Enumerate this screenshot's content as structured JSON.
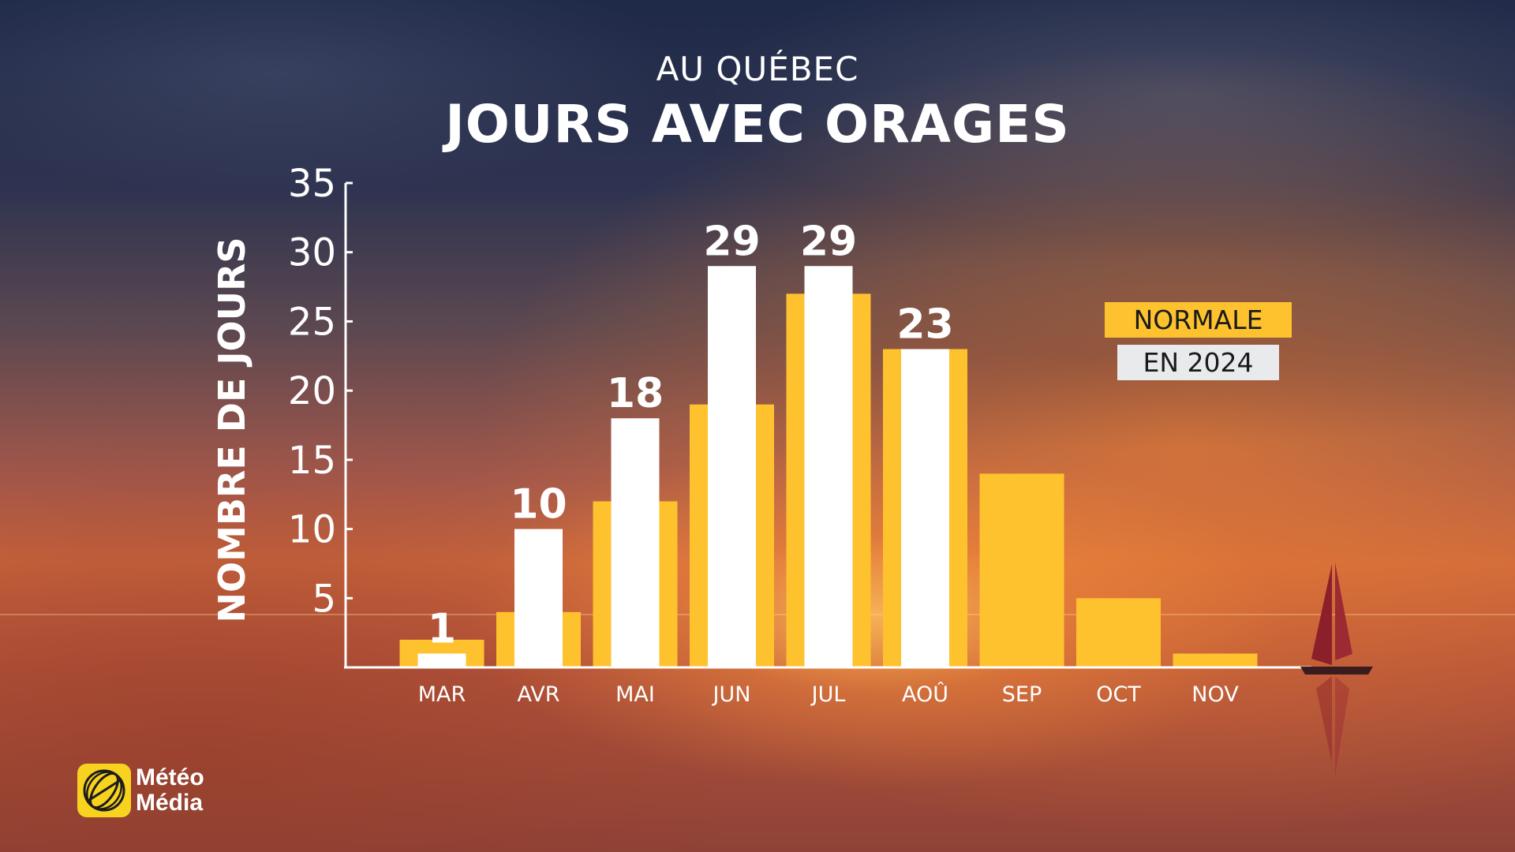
{
  "header": {
    "subtitle": "AU QUÉBEC",
    "title": "JOURS AVEC ORAGES"
  },
  "legend": {
    "normale": "NORMALE",
    "year": "EN 2024"
  },
  "logo": {
    "line1": "Météo",
    "line2": "Média"
  },
  "colors": {
    "normale": "#fec22f",
    "year": "#ffffff"
  },
  "chart_data": {
    "type": "bar",
    "title": "JOURS AVEC ORAGES",
    "subtitle": "AU QUÉBEC",
    "xlabel": "",
    "ylabel": "NOMBRE DE JOURS",
    "ylim": [
      0,
      35
    ],
    "yticks": [
      5,
      10,
      15,
      20,
      25,
      30,
      35
    ],
    "grid": false,
    "legend_position": "right",
    "categories": [
      "MAR",
      "AVR",
      "MAI",
      "JUN",
      "JUL",
      "AOÛ",
      "SEP",
      "OCT",
      "NOV"
    ],
    "series": [
      {
        "name": "NORMALE",
        "values": [
          2,
          4,
          12,
          19,
          27,
          23,
          14,
          5,
          1
        ]
      },
      {
        "name": "EN 2024",
        "values": [
          1,
          10,
          18,
          29,
          29,
          23,
          null,
          null,
          null
        ]
      }
    ],
    "data_labels": [
      "1",
      "10",
      "18",
      "29",
      "29",
      "23",
      "",
      "",
      ""
    ]
  }
}
